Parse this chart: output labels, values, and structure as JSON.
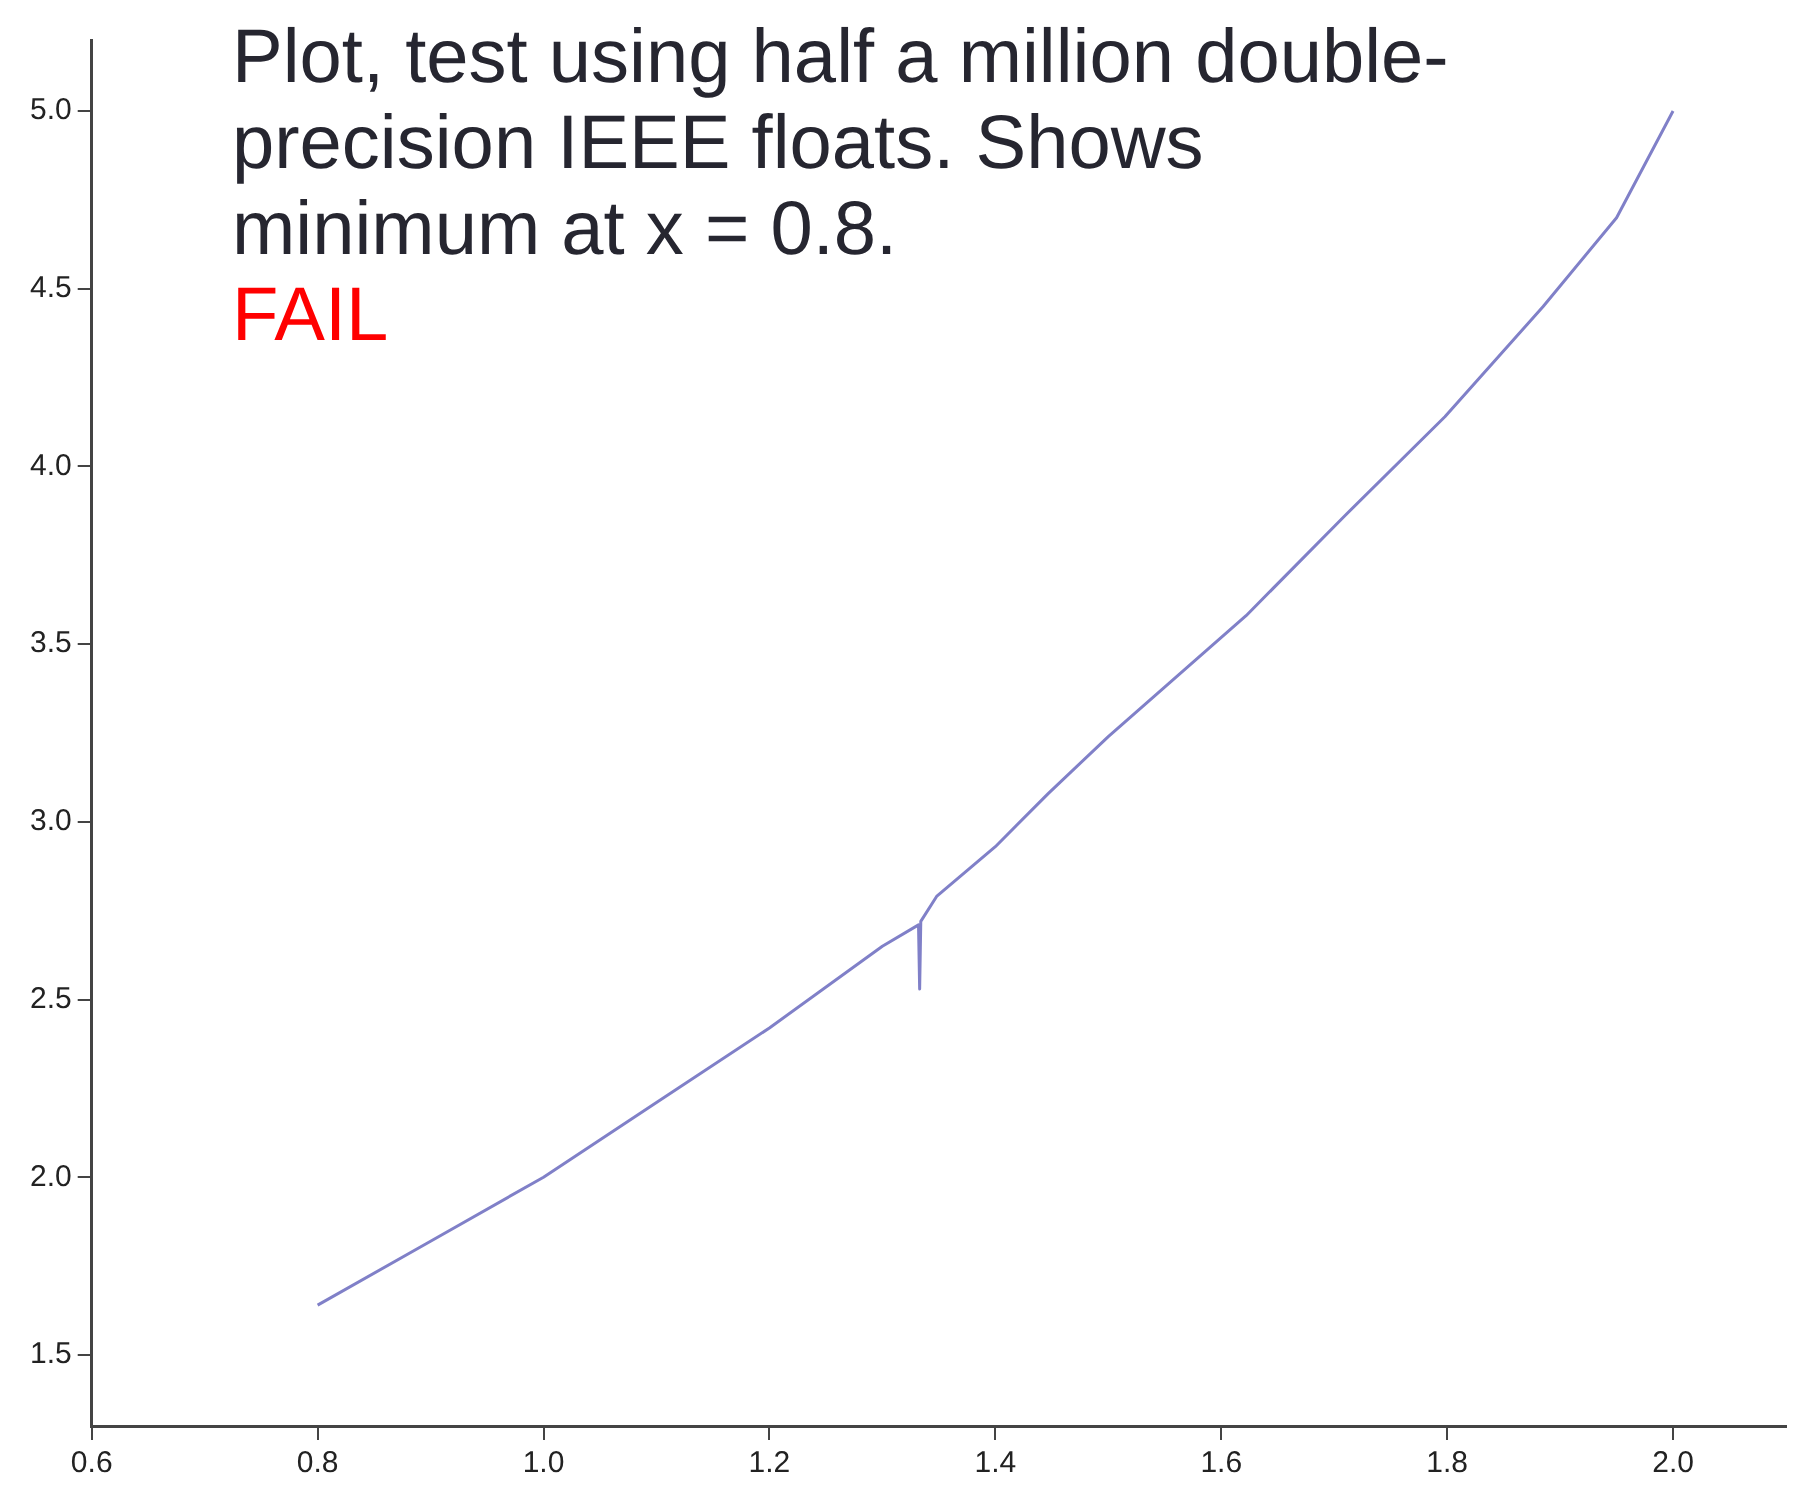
{
  "chart_data": {
    "type": "line",
    "title": "Plot, test using half a million double-precision IEEE floats. Shows minimum at x = 0.8.",
    "annotations": [
      "FAIL"
    ],
    "series": [
      {
        "color": "#8080c8",
        "x": [
          0.8,
          0.9,
          1.0,
          1.1,
          1.2,
          1.3,
          1.332,
          1.333,
          1.334,
          1.348,
          1.4,
          1.447,
          1.5,
          1.622,
          1.709,
          1.798,
          1.885,
          1.95,
          2.0
        ],
        "values": [
          1.64,
          1.82,
          2.0,
          2.21,
          2.42,
          2.65,
          2.71,
          2.53,
          2.72,
          2.79,
          2.93,
          3.08,
          3.24,
          3.58,
          3.86,
          4.14,
          4.45,
          4.7,
          5.0
        ]
      }
    ],
    "xlim": [
      0.6,
      2.1
    ],
    "ylim": [
      1.3,
      5.2
    ],
    "xticks": [
      0.6,
      0.8,
      {
        "value": 1,
        "label": "1.0"
      },
      1.2,
      1.4,
      1.6,
      1.8,
      {
        "value": 2,
        "label": "2.0"
      }
    ],
    "yticks": [
      1.5,
      {
        "value": 2,
        "label": "2.0"
      },
      2.5,
      {
        "value": 3,
        "label": "3.0"
      },
      3.5,
      {
        "value": 4,
        "label": "4.0"
      },
      4.5,
      {
        "value": 5,
        "label": "5.0"
      }
    ],
    "grid": false,
    "legend": false,
    "marker": "none",
    "line_style": "solid"
  }
}
